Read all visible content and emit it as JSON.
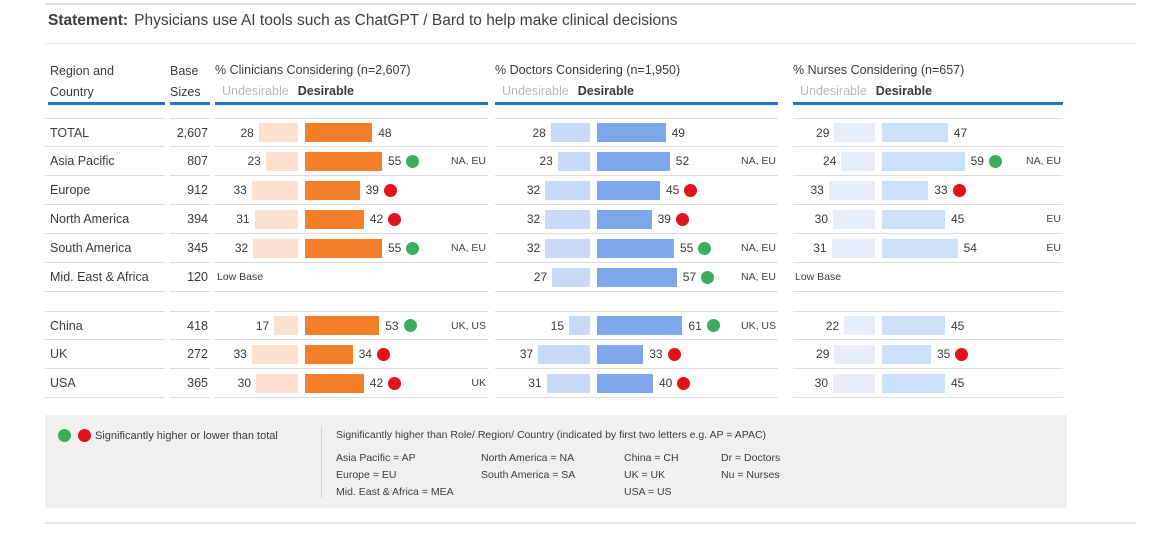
{
  "page": {
    "title_label": "Statement:",
    "title_text": "Physicians use AI tools such as ChatGPT / Bard to help make clinical decisions"
  },
  "table": {
    "region_header": "Region and Country",
    "base_header": "Base Sizes",
    "low_base_label": "Low Base",
    "groups": [
      {
        "title": "% Clinicians Considering (n=2,607)",
        "undesirable_label": "Undesirable",
        "desirable_label": "Desirable"
      },
      {
        "title": "% Doctors Considering (n=1,950)",
        "undesirable_label": "Undesirable",
        "desirable_label": "Desirable"
      },
      {
        "title": "% Nurses Considering (n=657)",
        "undesirable_label": "Undesirable",
        "desirable_label": "Desirable"
      }
    ]
  },
  "chart_data": {
    "type": "bar",
    "subtype": "paired diverging bars: Undesirable (left, pale) vs Desirable (right, solid), per role group",
    "group_keys": [
      "clinicians",
      "doctors",
      "nurses"
    ],
    "rows": [
      {
        "region": "TOTAL",
        "base": "2,607",
        "clinicians": {
          "undesirable": 28,
          "desirable": 48,
          "dot": null,
          "note": ""
        },
        "doctors": {
          "undesirable": 28,
          "desirable": 49,
          "dot": null,
          "note": ""
        },
        "nurses": {
          "undesirable": 29,
          "desirable": 47,
          "dot": null,
          "note": ""
        }
      },
      {
        "region": "Asia Pacific",
        "base": "807",
        "clinicians": {
          "undesirable": 23,
          "desirable": 55,
          "dot": "green",
          "note": "NA, EU"
        },
        "doctors": {
          "undesirable": 23,
          "desirable": 52,
          "dot": null,
          "note": "NA, EU"
        },
        "nurses": {
          "undesirable": 24,
          "desirable": 59,
          "dot": "green",
          "note": "NA, EU"
        }
      },
      {
        "region": "Europe",
        "base": "912",
        "clinicians": {
          "undesirable": 33,
          "desirable": 39,
          "dot": "red",
          "note": ""
        },
        "doctors": {
          "undesirable": 32,
          "desirable": 45,
          "dot": "red",
          "note": ""
        },
        "nurses": {
          "undesirable": 33,
          "desirable": 33,
          "dot": "red",
          "note": ""
        }
      },
      {
        "region": "North America",
        "base": "394",
        "clinicians": {
          "undesirable": 31,
          "desirable": 42,
          "dot": "red",
          "note": ""
        },
        "doctors": {
          "undesirable": 32,
          "desirable": 39,
          "dot": "red",
          "note": ""
        },
        "nurses": {
          "undesirable": 30,
          "desirable": 45,
          "dot": null,
          "note": "EU"
        }
      },
      {
        "region": "South America",
        "base": "345",
        "clinicians": {
          "undesirable": 32,
          "desirable": 55,
          "dot": "green",
          "note": "NA, EU"
        },
        "doctors": {
          "undesirable": 32,
          "desirable": 55,
          "dot": "green",
          "note": "NA, EU"
        },
        "nurses": {
          "undesirable": 31,
          "desirable": 54,
          "dot": null,
          "note": "EU"
        }
      },
      {
        "region": "Mid. East & Africa",
        "base": "120",
        "spacer_after": true,
        "clinicians": {
          "low_base": true
        },
        "doctors": {
          "undesirable": 27,
          "desirable": 57,
          "dot": "green",
          "note": "NA, EU"
        },
        "nurses": {
          "low_base": true
        }
      },
      {
        "region": "China",
        "base": "418",
        "top_line": true,
        "clinicians": {
          "undesirable": 17,
          "desirable": 53,
          "dot": "green",
          "note": "UK, US"
        },
        "doctors": {
          "undesirable": 15,
          "desirable": 61,
          "dot": "green",
          "note": "UK, US"
        },
        "nurses": {
          "undesirable": 22,
          "desirable": 45,
          "dot": null,
          "note": ""
        }
      },
      {
        "region": "UK",
        "base": "272",
        "clinicians": {
          "undesirable": 33,
          "desirable": 34,
          "dot": "red",
          "note": ""
        },
        "doctors": {
          "undesirable": 37,
          "desirable": 33,
          "dot": "red",
          "note": ""
        },
        "nurses": {
          "undesirable": 29,
          "desirable": 35,
          "dot": "red",
          "note": ""
        }
      },
      {
        "region": "USA",
        "base": "365",
        "clinicians": {
          "undesirable": 30,
          "desirable": 42,
          "dot": "red",
          "note": "UK"
        },
        "doctors": {
          "undesirable": 31,
          "desirable": 40,
          "dot": "red",
          "note": ""
        },
        "nurses": {
          "undesirable": 30,
          "desirable": 45,
          "dot": null,
          "note": ""
        }
      }
    ]
  },
  "legend": {
    "left_text": "Significantly higher or lower than total",
    "right_title": "Significantly higher than Role/ Region/ Country (indicated by first two letters e.g. AP = APAC)",
    "columns": [
      [
        "Asia Pacific = AP",
        "Europe = EU",
        "Mid. East & Africa = MEA"
      ],
      [
        "North America  = NA",
        "South America = SA"
      ],
      [
        "China = CH",
        "UK = UK",
        "USA = US"
      ],
      [
        "Dr = Doctors",
        "Nu = Nurses"
      ]
    ]
  },
  "colors": {
    "clinicians_undesirable": "#FBE1CF",
    "clinicians_desirable": "#F57E28",
    "doctors_undesirable": "#C8DAF8",
    "doctors_desirable": "#7FA7EC",
    "nurses_undesirable": "#E8EEF9",
    "nurses_desirable": "#CCDFF9",
    "dot_green": "#3CAD5E",
    "dot_red": "#E2111C",
    "header_underline": "#2173D9"
  }
}
